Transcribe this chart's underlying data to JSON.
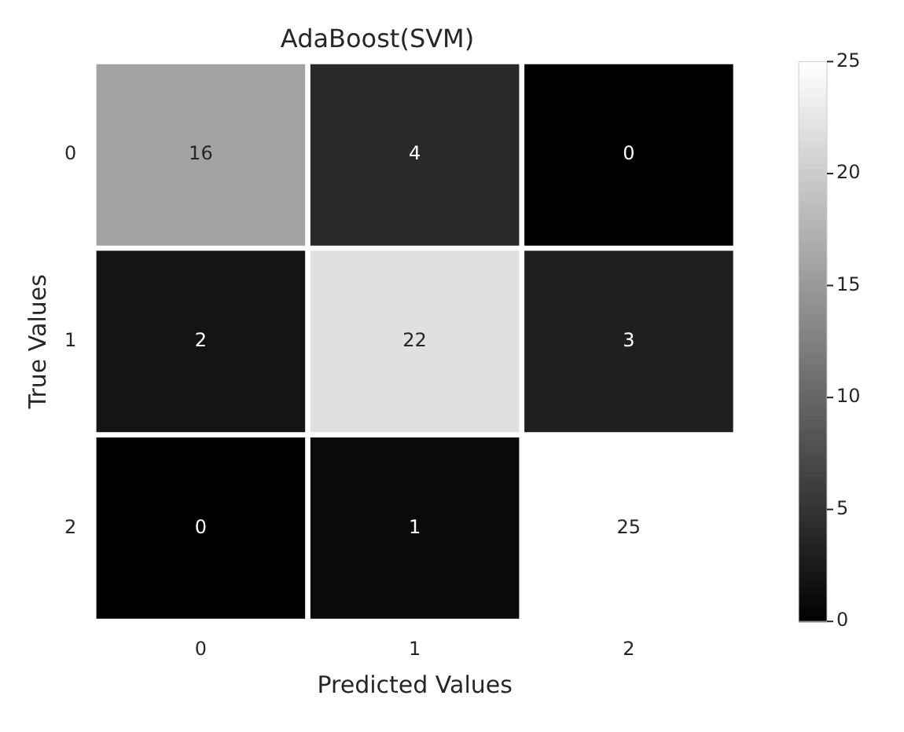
{
  "chart_data": {
    "type": "heatmap",
    "title": "AdaBoost(SVM)",
    "xlabel": "Predicted Values",
    "ylabel": "True Values",
    "categories": [
      "0",
      "1",
      "2"
    ],
    "y_categories": [
      "0",
      "1",
      "2"
    ],
    "cells": [
      [
        16,
        4,
        0
      ],
      [
        2,
        22,
        3
      ],
      [
        0,
        1,
        25
      ]
    ],
    "clim": [
      0,
      25
    ],
    "cticks": [
      0,
      5,
      10,
      15,
      20,
      25
    ],
    "data_labels": true
  }
}
